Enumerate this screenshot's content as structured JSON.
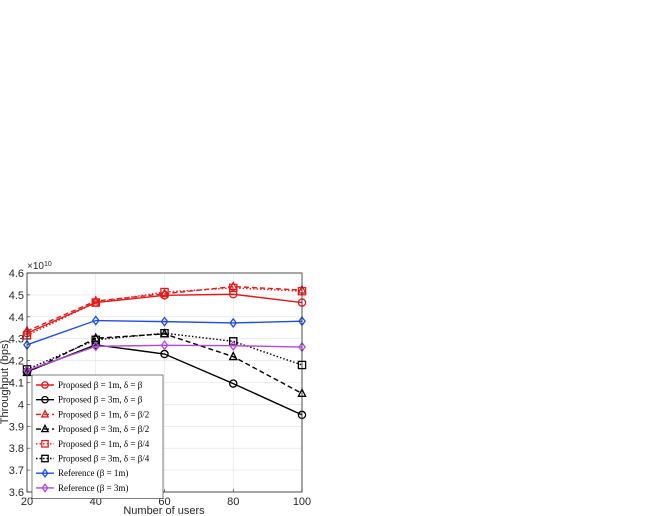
{
  "chart_data": {
    "type": "line",
    "title": "",
    "xlabel": "Number of users",
    "ylabel": "Throughput (bps)",
    "exponent_base": "×10",
    "exponent_power": "10",
    "x": [
      20,
      40,
      60,
      80,
      100
    ],
    "xlim": [
      20,
      100
    ],
    "ylim": [
      3.6,
      4.6
    ],
    "y_scale_note": "values in units of 1e10",
    "xticks": [
      "20",
      "40",
      "60",
      "80",
      "100"
    ],
    "yticks": [
      "3.6",
      "3.7",
      "3.8",
      "3.9",
      "4",
      "4.1",
      "4.2",
      "4.3",
      "4.4",
      "4.5",
      "4.6"
    ],
    "grid": true,
    "legend_position": "bottom-left",
    "series": [
      {
        "name": "Proposed β = 1m, δ = β",
        "color": "#e31a1c",
        "dash": "solid",
        "marker": "circle",
        "values": [
          4.325,
          4.465,
          4.498,
          4.503,
          4.465
        ]
      },
      {
        "name": "Proposed β = 3m, δ = β",
        "color": "#000000",
        "dash": "solid",
        "marker": "circle",
        "values": [
          4.15,
          4.272,
          4.23,
          4.095,
          3.952
        ]
      },
      {
        "name": "Proposed β = 1m, δ = β/2",
        "color": "#e31a1c",
        "dash": "dashed",
        "marker": "triangle",
        "values": [
          4.335,
          4.472,
          4.505,
          4.538,
          4.522
        ]
      },
      {
        "name": "Proposed β = 3m, δ = β/2",
        "color": "#000000",
        "dash": "dashed",
        "marker": "triangle",
        "values": [
          4.145,
          4.302,
          4.322,
          4.218,
          4.05
        ]
      },
      {
        "name": "Proposed β = 1m, δ = β/4",
        "color": "#e31a1c",
        "dash": "dotted",
        "marker": "square",
        "values": [
          4.315,
          4.465,
          4.513,
          4.532,
          4.517
        ]
      },
      {
        "name": "Proposed β = 3m, δ = β/4",
        "color": "#000000",
        "dash": "dotted",
        "marker": "square",
        "values": [
          4.16,
          4.295,
          4.325,
          4.288,
          4.18
        ]
      },
      {
        "name": "Reference (β = 1m)",
        "color": "#1f4fe0",
        "dash": "solid",
        "marker": "diamond",
        "values": [
          4.272,
          4.383,
          4.378,
          4.372,
          4.38
        ]
      },
      {
        "name": "Reference (β = 3m)",
        "color": "#b04ad8",
        "dash": "solid",
        "marker": "diamond",
        "values": [
          4.155,
          4.265,
          4.27,
          4.268,
          4.262
        ]
      }
    ]
  }
}
